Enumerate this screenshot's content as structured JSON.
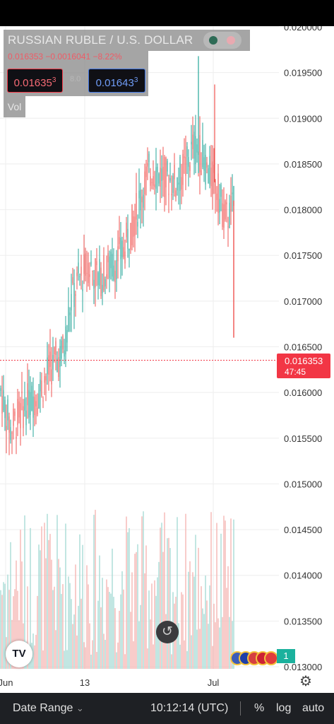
{
  "instrument": {
    "title": "RUSSIAN RUBLE / U.S. DOLLAR",
    "ohlc_line": "0.016353 −0.0016041 −8.22%",
    "bid": "0.01635",
    "bid_sup": "3",
    "mid": "8.0",
    "ask": "0.01643",
    "ask_sup": "3",
    "vol_label": "Vol",
    "current_price": "0.016353",
    "countdown": "47:45"
  },
  "chart_data": {
    "type": "candlestick",
    "y_ticks": [
      "0.020000",
      "0.019500",
      "0.019000",
      "0.018500",
      "0.018000",
      "0.017500",
      "0.017000",
      "0.016500",
      "0.016000",
      "0.015500",
      "0.015000",
      "0.014500",
      "0.014000",
      "0.013500",
      "0.013000"
    ],
    "ylim": [
      0.013,
      0.02
    ],
    "x_ticks": [
      "Jun",
      "13",
      "Jul"
    ],
    "last_price": 0.016353,
    "grid": true,
    "volume_panel": true,
    "colors": {
      "up": "#26a69a",
      "down": "#ef5350",
      "vol_up": "#a9dcd6",
      "vol_down": "#f4b6b4",
      "grid": "#eeeeee",
      "last_line": "#f23645",
      "axis_text": "#333333"
    }
  },
  "overlays": {
    "reset_icon": "reset-icon",
    "tradingview_logo_icon": "tv-logo-icon",
    "flag_icons": [
      "us-flag-icon",
      "eu-flag-icon",
      "uk-flag-icon",
      "gb-flag-icon",
      "ca-flag-icon"
    ],
    "counter": "1",
    "settings_icon": "gear-icon"
  },
  "bottom_bar": {
    "date_range": "Date Range",
    "chevron": "⌄",
    "time": "10:12:14 (UTC)",
    "percent": "%",
    "log": "log",
    "auto": "auto"
  }
}
